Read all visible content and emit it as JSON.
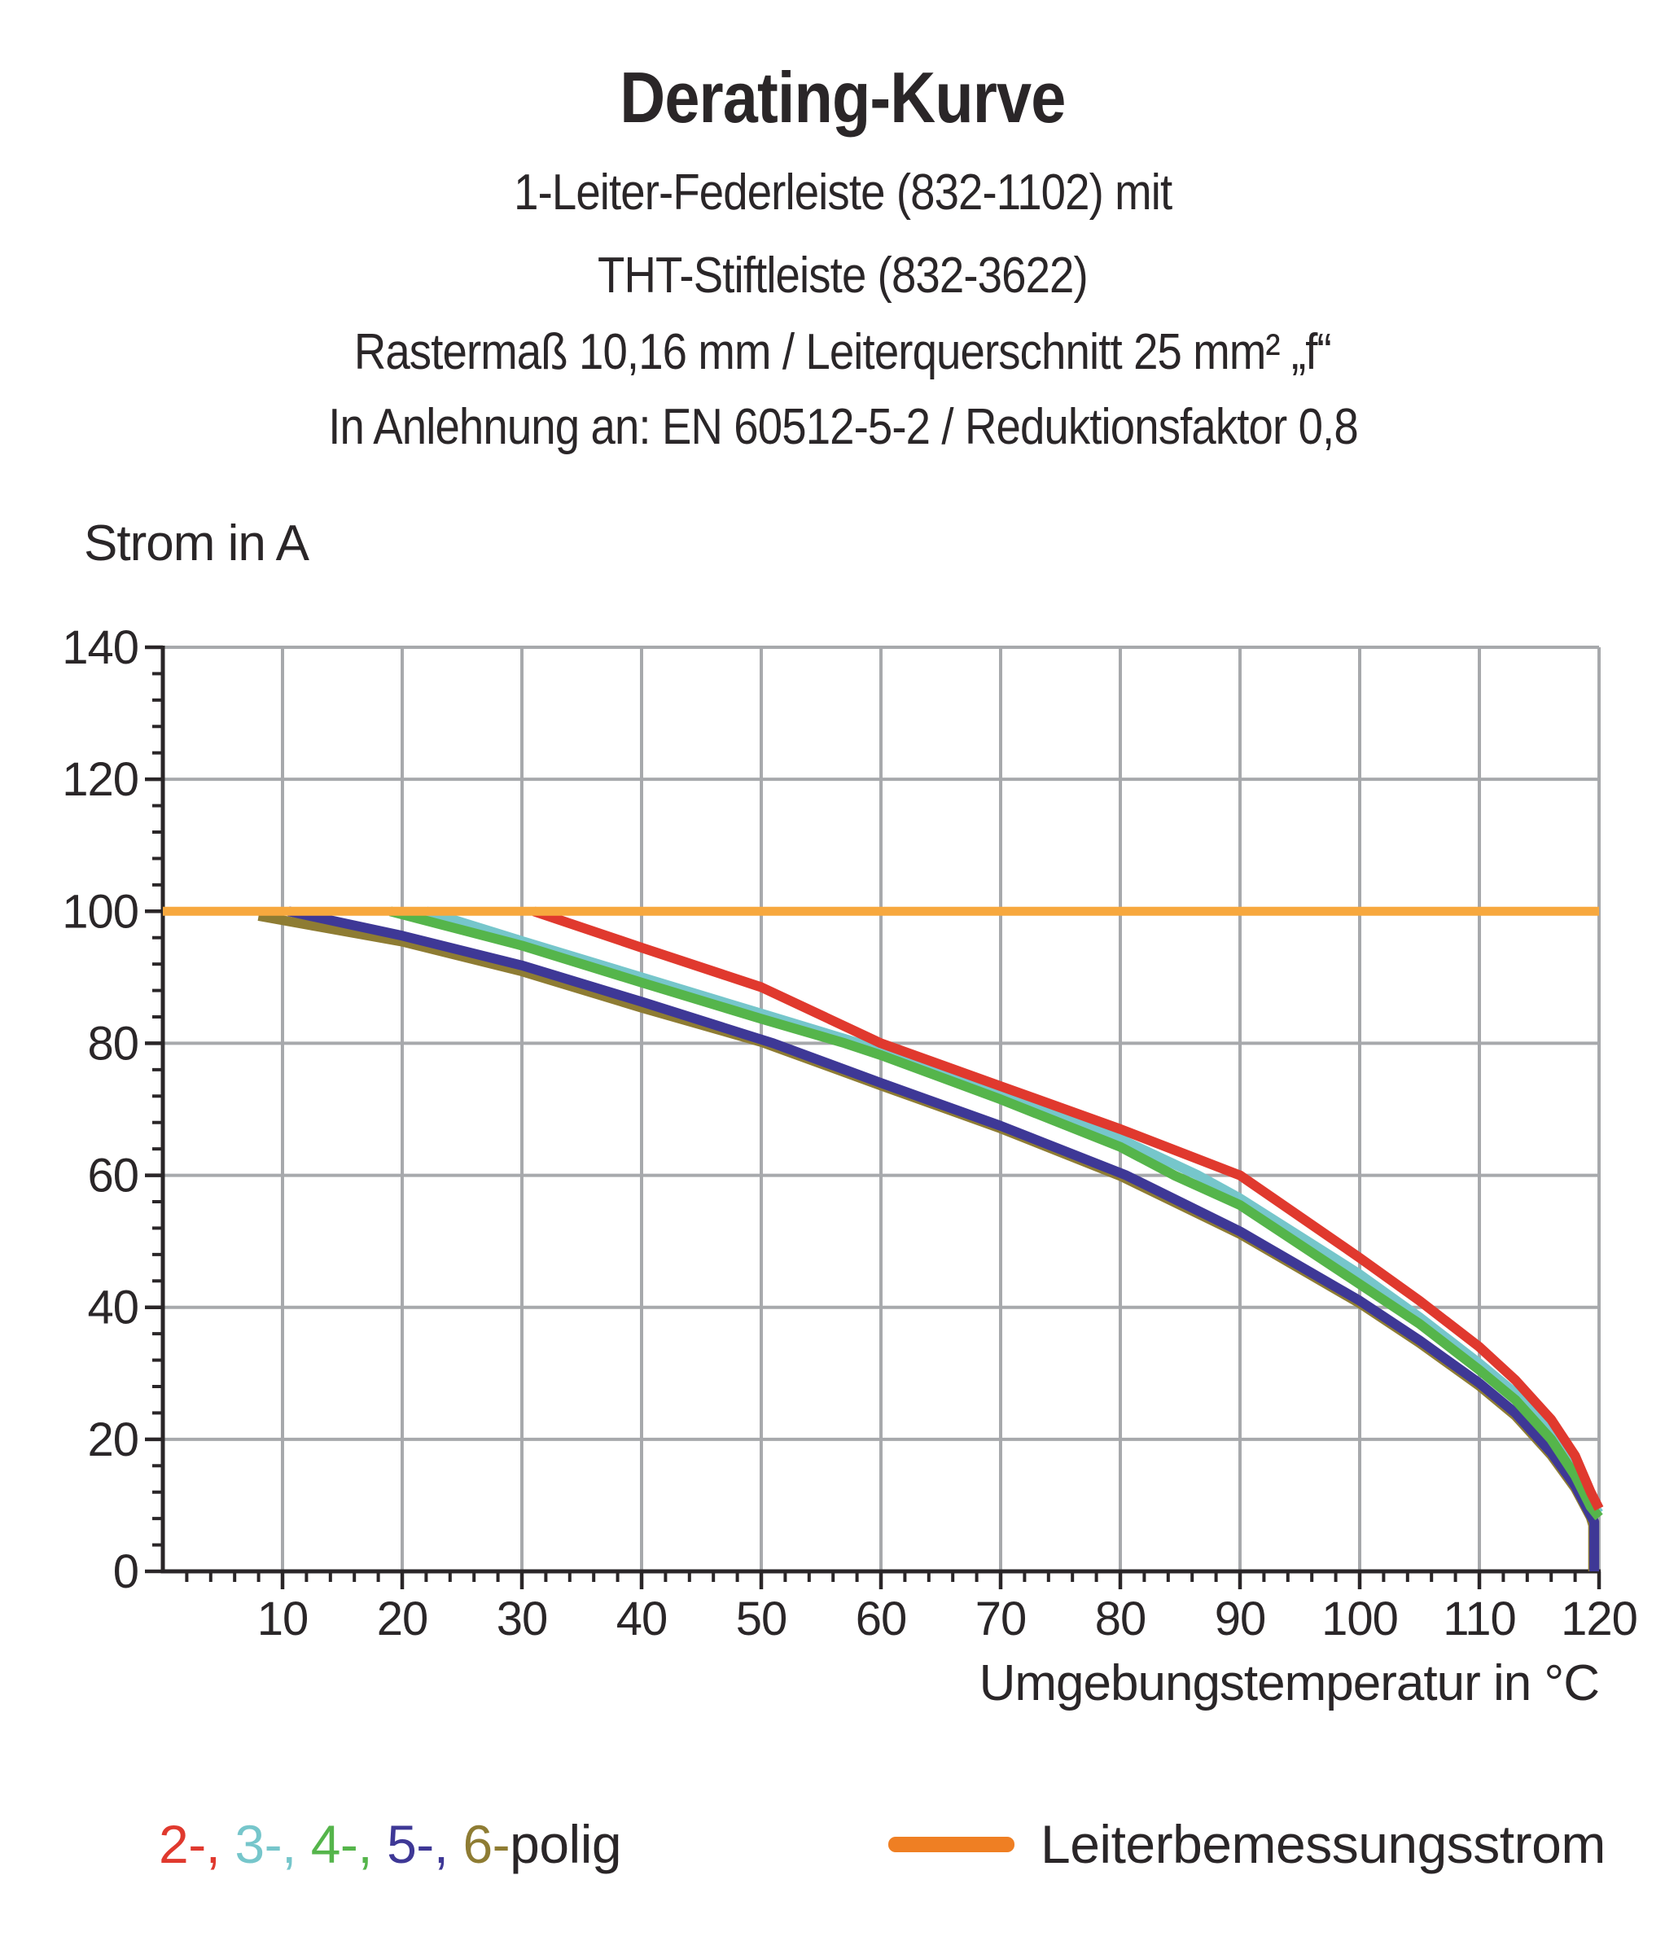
{
  "title": "Derating-Kurve",
  "subtitle_lines": [
    "1-Leiter-Federleiste (832-1102) mit",
    "THT-Stiftleiste (832-3622)",
    "Rastermaß 10,16 mm / Leiterquerschnitt 25 mm² „f“",
    "In Anlehnung an: EN 60512-5-2 / Reduktionsfaktor 0,8"
  ],
  "legend": {
    "poles": [
      {
        "name": "2-polig",
        "label": "2-,",
        "color": "#e0392e"
      },
      {
        "name": "3-polig",
        "label": "3-,",
        "color": "#76c6cb"
      },
      {
        "name": "4-polig",
        "label": "4-,",
        "color": "#55b54b"
      },
      {
        "name": "5-polig",
        "label": "5-,",
        "color": "#3e3896"
      },
      {
        "name": "6-polig",
        "label": "6-",
        "color": "#8e7c33"
      }
    ],
    "suffix": "polig",
    "rated_current": {
      "label": "Leiterbemessungsstrom",
      "swatch_color": "#ef7f23"
    }
  },
  "chart_data": {
    "type": "line",
    "title": "Derating-Kurve",
    "xlabel": "Umgebungstemperatur in °C",
    "ylabel": "Strom in A",
    "xlim": [
      0,
      120
    ],
    "ylim": [
      0,
      140
    ],
    "x_ticks": [
      10,
      20,
      30,
      40,
      50,
      60,
      70,
      80,
      90,
      100,
      110,
      120
    ],
    "y_ticks": [
      0,
      20,
      40,
      60,
      80,
      100,
      120,
      140
    ],
    "x_minor_step": 2,
    "y_minor_step": 4,
    "grid": true,
    "grid_color": "#a7a9ac",
    "axis_color": "#2a2628",
    "legend_position": "bottom",
    "reference_line": {
      "name": "Leiterbemessungsstrom",
      "value": 100,
      "color": "#f7a83e",
      "points": [
        [
          0,
          100
        ],
        [
          120,
          100
        ]
      ]
    },
    "series": [
      {
        "name": "2-polig",
        "color": "#e0392e",
        "points": [
          [
            31,
            100
          ],
          [
            40,
            94.5
          ],
          [
            50,
            88.5
          ],
          [
            60,
            80
          ],
          [
            70,
            73.5
          ],
          [
            80,
            67
          ],
          [
            90,
            60
          ],
          [
            100,
            47.5
          ],
          [
            105,
            41
          ],
          [
            110,
            34
          ],
          [
            113,
            29
          ],
          [
            116,
            23
          ],
          [
            118,
            17.5
          ],
          [
            119.3,
            12
          ],
          [
            120,
            9.5
          ]
        ]
      },
      {
        "name": "3-polig",
        "color": "#76c6cb",
        "points": [
          [
            22,
            100
          ],
          [
            30,
            95.5
          ],
          [
            40,
            90
          ],
          [
            50,
            84.5
          ],
          [
            60,
            79
          ],
          [
            70,
            72.5
          ],
          [
            80,
            65.5
          ],
          [
            86.5,
            60
          ],
          [
            90,
            56.5
          ],
          [
            100,
            45
          ],
          [
            105,
            38.5
          ],
          [
            110,
            31.5
          ],
          [
            113,
            27
          ],
          [
            116,
            21
          ],
          [
            118,
            15.5
          ],
          [
            119.3,
            10.5
          ],
          [
            120,
            8.8
          ]
        ]
      },
      {
        "name": "4-polig",
        "color": "#55b54b",
        "points": [
          [
            19,
            100
          ],
          [
            30,
            94.8
          ],
          [
            40,
            89.2
          ],
          [
            50,
            83.7
          ],
          [
            57,
            80
          ],
          [
            60,
            78.2
          ],
          [
            70,
            71.5
          ],
          [
            80,
            64.3
          ],
          [
            84.5,
            60
          ],
          [
            90,
            55.5
          ],
          [
            100,
            43.5
          ],
          [
            105,
            37.5
          ],
          [
            110,
            30.5
          ],
          [
            113,
            26
          ],
          [
            116,
            20
          ],
          [
            118,
            14.5
          ],
          [
            119.3,
            9.8
          ],
          [
            120,
            8.2
          ]
        ]
      },
      {
        "name": "5-polig",
        "color": "#3e3896",
        "points": [
          [
            10.5,
            100
          ],
          [
            20,
            96.3
          ],
          [
            30,
            91.8
          ],
          [
            40,
            86.3
          ],
          [
            51,
            80
          ],
          [
            60,
            74
          ],
          [
            70,
            67.5
          ],
          [
            80.5,
            60
          ],
          [
            90,
            51.5
          ],
          [
            100,
            41
          ],
          [
            105,
            35
          ],
          [
            110,
            28.5
          ],
          [
            113,
            24
          ],
          [
            116,
            18
          ],
          [
            118,
            13
          ],
          [
            119.3,
            8.5
          ],
          [
            119.6,
            7.5
          ],
          [
            119.6,
            0
          ]
        ]
      },
      {
        "name": "6-polig",
        "color": "#8e7c33",
        "points": [
          [
            8,
            99.3
          ],
          [
            20,
            95.4
          ],
          [
            30,
            90.9
          ],
          [
            40,
            85.4
          ],
          [
            50,
            80.2
          ],
          [
            60,
            73.6
          ],
          [
            70,
            67.1
          ],
          [
            80,
            59.9
          ],
          [
            90,
            51.1
          ],
          [
            100,
            40.6
          ],
          [
            105,
            34.6
          ],
          [
            110,
            28.1
          ],
          [
            113,
            23.6
          ],
          [
            116,
            17.6
          ],
          [
            118,
            12.6
          ],
          [
            119.3,
            8.2
          ],
          [
            119.5,
            7
          ],
          [
            119.5,
            0
          ]
        ]
      }
    ]
  }
}
